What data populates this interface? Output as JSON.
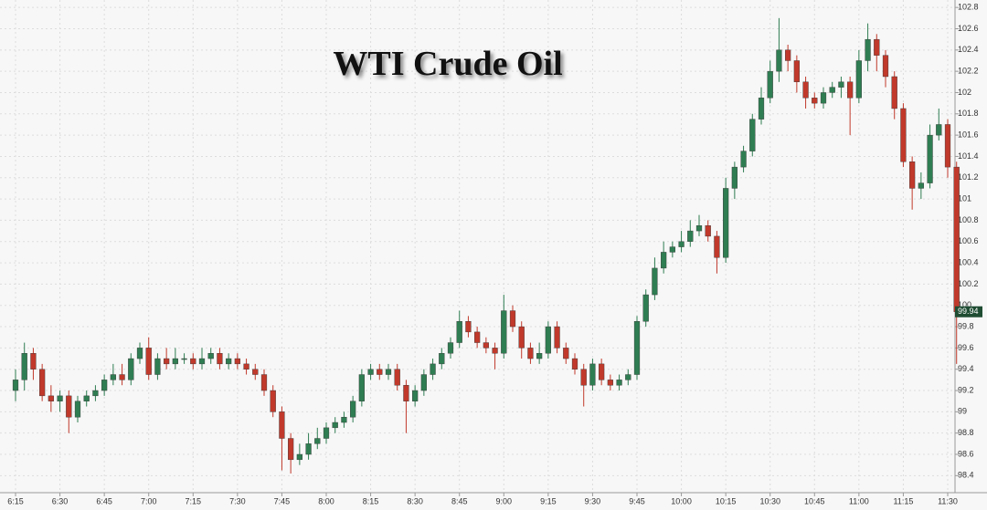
{
  "chart_data": {
    "type": "candlestick",
    "title": "WTI Crude Oil",
    "up_color": "#2f7d52",
    "down_color": "#c0392b",
    "grid": true,
    "ylim": [
      98.24,
      102.87
    ],
    "yticks": [
      98.4,
      98.6,
      98.8,
      99,
      99.2,
      99.4,
      99.6,
      99.8,
      100,
      100.2,
      100.4,
      100.6,
      100.8,
      101,
      101.2,
      101.4,
      101.6,
      101.8,
      102,
      102.2,
      102.4,
      102.6,
      102.8
    ],
    "last_price": 99.94,
    "categories": [
      "6:15",
      null,
      null,
      null,
      null,
      "6:30",
      null,
      null,
      null,
      null,
      "6:45",
      null,
      null,
      null,
      null,
      "7:00",
      null,
      null,
      null,
      null,
      "7:15",
      null,
      null,
      null,
      null,
      "7:30",
      null,
      null,
      null,
      null,
      "7:45",
      null,
      null,
      null,
      null,
      "8:00",
      null,
      null,
      null,
      null,
      "8:15",
      null,
      null,
      null,
      null,
      "8:30",
      null,
      null,
      null,
      null,
      "8:45",
      null,
      null,
      null,
      null,
      "9:00",
      null,
      null,
      null,
      null,
      "9:15",
      null,
      null,
      null,
      null,
      "9:30",
      null,
      null,
      null,
      null,
      "9:45",
      null,
      null,
      null,
      null,
      "10:00",
      null,
      null,
      null,
      null,
      "10:15",
      null,
      null,
      null,
      null,
      "10:30",
      null,
      null,
      null,
      null,
      "10:45",
      null,
      null,
      null,
      null,
      "11:00",
      null,
      null,
      null,
      null,
      "11:15",
      null,
      null,
      null,
      null,
      "11:30",
      null
    ],
    "open": [
      99.2,
      99.3,
      99.55,
      99.4,
      99.15,
      99.1,
      99.15,
      98.95,
      99.1,
      99.15,
      99.2,
      99.3,
      99.35,
      99.3,
      99.5,
      99.6,
      99.35,
      99.5,
      99.45,
      99.5,
      99.5,
      99.45,
      99.5,
      99.55,
      99.45,
      99.5,
      99.45,
      99.4,
      99.35,
      99.2,
      99.0,
      98.75,
      98.55,
      98.6,
      98.7,
      98.75,
      98.85,
      98.9,
      98.95,
      99.1,
      99.35,
      99.4,
      99.35,
      99.4,
      99.25,
      99.1,
      99.2,
      99.35,
      99.45,
      99.55,
      99.65,
      99.85,
      99.75,
      99.65,
      99.6,
      99.55,
      99.95,
      99.8,
      99.6,
      99.5,
      99.55,
      99.8,
      99.6,
      99.5,
      99.4,
      99.25,
      99.45,
      99.3,
      99.25,
      99.3,
      99.35,
      99.85,
      100.1,
      100.35,
      100.5,
      100.55,
      100.6,
      100.7,
      100.75,
      100.65,
      100.45,
      101.1,
      101.3,
      101.45,
      101.75,
      101.95,
      102.2,
      102.4,
      102.3,
      102.1,
      101.95,
      101.9,
      102.0,
      102.05,
      102.1,
      101.95,
      102.3,
      102.5,
      102.35,
      102.15,
      101.85,
      101.35,
      101.1,
      101.15,
      101.6,
      101.7,
      101.3
    ],
    "high": [
      99.4,
      99.65,
      99.6,
      99.45,
      99.25,
      99.2,
      99.2,
      99.15,
      99.2,
      99.25,
      99.35,
      99.45,
      99.45,
      99.55,
      99.65,
      99.7,
      99.55,
      99.6,
      99.6,
      99.55,
      99.55,
      99.6,
      99.6,
      99.6,
      99.55,
      99.55,
      99.5,
      99.45,
      99.4,
      99.25,
      99.05,
      98.8,
      98.7,
      98.8,
      98.85,
      98.9,
      98.95,
      99.0,
      99.15,
      99.4,
      99.45,
      99.45,
      99.45,
      99.45,
      99.3,
      99.25,
      99.4,
      99.5,
      99.6,
      99.7,
      99.95,
      99.9,
      99.8,
      99.7,
      99.65,
      100.1,
      100.0,
      99.85,
      99.65,
      99.65,
      99.85,
      99.85,
      99.65,
      99.55,
      99.45,
      99.5,
      99.5,
      99.35,
      99.35,
      99.4,
      99.9,
      100.15,
      100.45,
      100.6,
      100.6,
      100.7,
      100.8,
      100.85,
      100.8,
      100.7,
      101.2,
      101.35,
      101.5,
      101.8,
      102.05,
      102.3,
      102.7,
      102.45,
      102.35,
      102.15,
      102.0,
      102.05,
      102.1,
      102.15,
      102.15,
      102.4,
      102.65,
      102.55,
      102.4,
      102.2,
      101.9,
      101.4,
      101.25,
      101.7,
      101.85,
      101.75,
      101.35
    ],
    "low": [
      99.1,
      99.2,
      99.3,
      99.1,
      99.0,
      99.0,
      98.8,
      98.9,
      99.05,
      99.1,
      99.15,
      99.25,
      99.25,
      99.25,
      99.45,
      99.3,
      99.3,
      99.4,
      99.4,
      99.45,
      99.4,
      99.4,
      99.45,
      99.4,
      99.4,
      99.4,
      99.35,
      99.3,
      99.15,
      98.95,
      98.45,
      98.42,
      98.5,
      98.55,
      98.65,
      98.7,
      98.8,
      98.85,
      98.9,
      99.05,
      99.3,
      99.3,
      99.3,
      99.2,
      98.8,
      99.05,
      99.15,
      99.3,
      99.4,
      99.5,
      99.6,
      99.7,
      99.6,
      99.55,
      99.4,
      99.5,
      99.75,
      99.5,
      99.45,
      99.45,
      99.5,
      99.55,
      99.45,
      99.35,
      99.05,
      99.2,
      99.25,
      99.2,
      99.2,
      99.25,
      99.3,
      99.8,
      100.05,
      100.3,
      100.45,
      100.5,
      100.55,
      100.65,
      100.6,
      100.3,
      100.4,
      101.0,
      101.25,
      101.4,
      101.7,
      101.9,
      102.1,
      102.2,
      102.0,
      101.85,
      101.85,
      101.85,
      101.95,
      101.95,
      101.6,
      101.9,
      102.2,
      102.2,
      102.05,
      101.75,
      101.3,
      100.9,
      101.0,
      101.1,
      101.55,
      101.2,
      99.45
    ],
    "close": [
      99.3,
      99.55,
      99.4,
      99.15,
      99.1,
      99.15,
      98.95,
      99.1,
      99.15,
      99.2,
      99.3,
      99.35,
      99.3,
      99.5,
      99.6,
      99.35,
      99.5,
      99.45,
      99.5,
      99.5,
      99.45,
      99.5,
      99.55,
      99.45,
      99.5,
      99.45,
      99.4,
      99.35,
      99.2,
      99.0,
      98.75,
      98.55,
      98.6,
      98.7,
      98.75,
      98.85,
      98.9,
      98.95,
      99.1,
      99.35,
      99.4,
      99.35,
      99.4,
      99.25,
      99.1,
      99.2,
      99.35,
      99.45,
      99.55,
      99.65,
      99.85,
      99.75,
      99.65,
      99.6,
      99.55,
      99.95,
      99.8,
      99.6,
      99.5,
      99.55,
      99.8,
      99.6,
      99.5,
      99.4,
      99.25,
      99.45,
      99.3,
      99.25,
      99.3,
      99.35,
      99.85,
      100.1,
      100.35,
      100.5,
      100.55,
      100.6,
      100.7,
      100.75,
      100.65,
      100.45,
      101.1,
      101.3,
      101.45,
      101.75,
      101.95,
      102.2,
      102.4,
      102.3,
      102.1,
      101.95,
      101.9,
      102.0,
      102.05,
      102.1,
      101.95,
      102.3,
      102.5,
      102.35,
      102.15,
      101.85,
      101.35,
      101.1,
      101.15,
      101.6,
      101.7,
      101.3,
      99.94
    ]
  }
}
